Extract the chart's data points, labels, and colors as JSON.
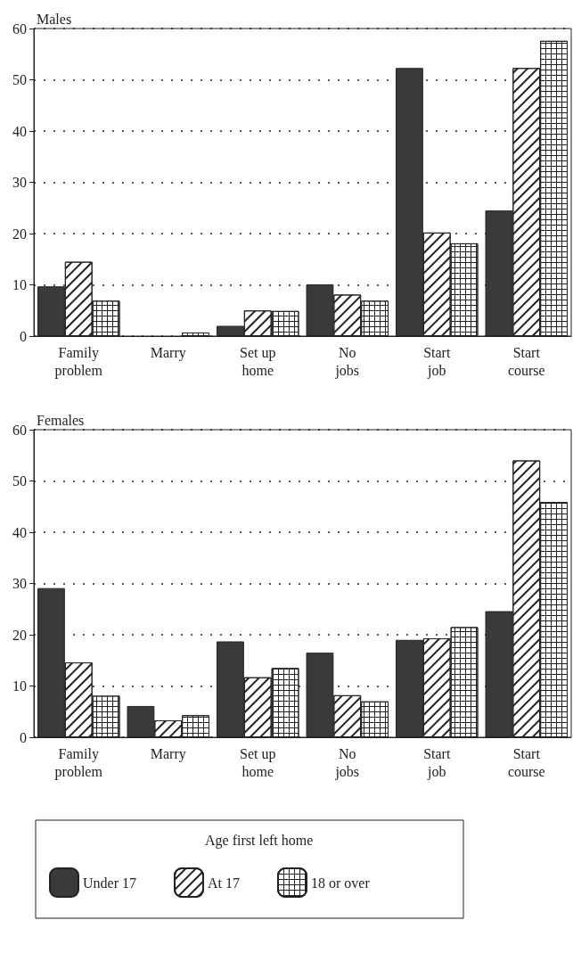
{
  "chart_data": [
    {
      "type": "bar",
      "title": "Males",
      "categories": [
        "Family\nproblem",
        "Marry",
        "Set up\nhome",
        "No\njobs",
        "Start\njob",
        "Start\ncourse"
      ],
      "series": [
        {
          "color": "#3a3a3a",
          "values": [
            9.7,
            0,
            2.0,
            10.1,
            52.3,
            24.5
          ]
        },
        {
          "color": "#ffffff",
          "values": [
            14.5,
            0,
            5.0,
            8.1,
            20.2,
            52.3
          ]
        },
        {
          "color": "#ffffff",
          "values": [
            6.9,
            0.7,
            4.9,
            6.9,
            18.1,
            57.6
          ]
        }
      ],
      "ylim": [
        0,
        60
      ],
      "yticks": [
        0,
        10,
        20,
        30,
        40,
        50,
        60
      ],
      "grid": "y",
      "legend": false
    },
    {
      "type": "bar",
      "title": "Females",
      "categories": [
        "Family\nproblem",
        "Marry",
        "Set up\nhome",
        "No\njobs",
        "Start\njob",
        "Start\ncourse"
      ],
      "series": [
        {
          "name": "Under 17",
          "color": "#3a3a3a",
          "values": [
            29.1,
            6.1,
            18.7,
            16.5,
            19.0,
            24.6
          ]
        },
        {
          "name": "At 17",
          "color": "#ffffff",
          "values": [
            14.6,
            3.3,
            11.7,
            8.2,
            19.3,
            54.0
          ]
        },
        {
          "name": "18 or over",
          "color": "#ffffff",
          "values": [
            8.1,
            4.3,
            13.5,
            7.0,
            21.5,
            45.9
          ]
        }
      ],
      "ylim": [
        0,
        60
      ],
      "yticks": [
        0,
        10,
        20,
        30,
        40,
        50,
        60
      ],
      "grid": "y",
      "legend": "bottom",
      "legend_title": "Age first left home"
    }
  ]
}
